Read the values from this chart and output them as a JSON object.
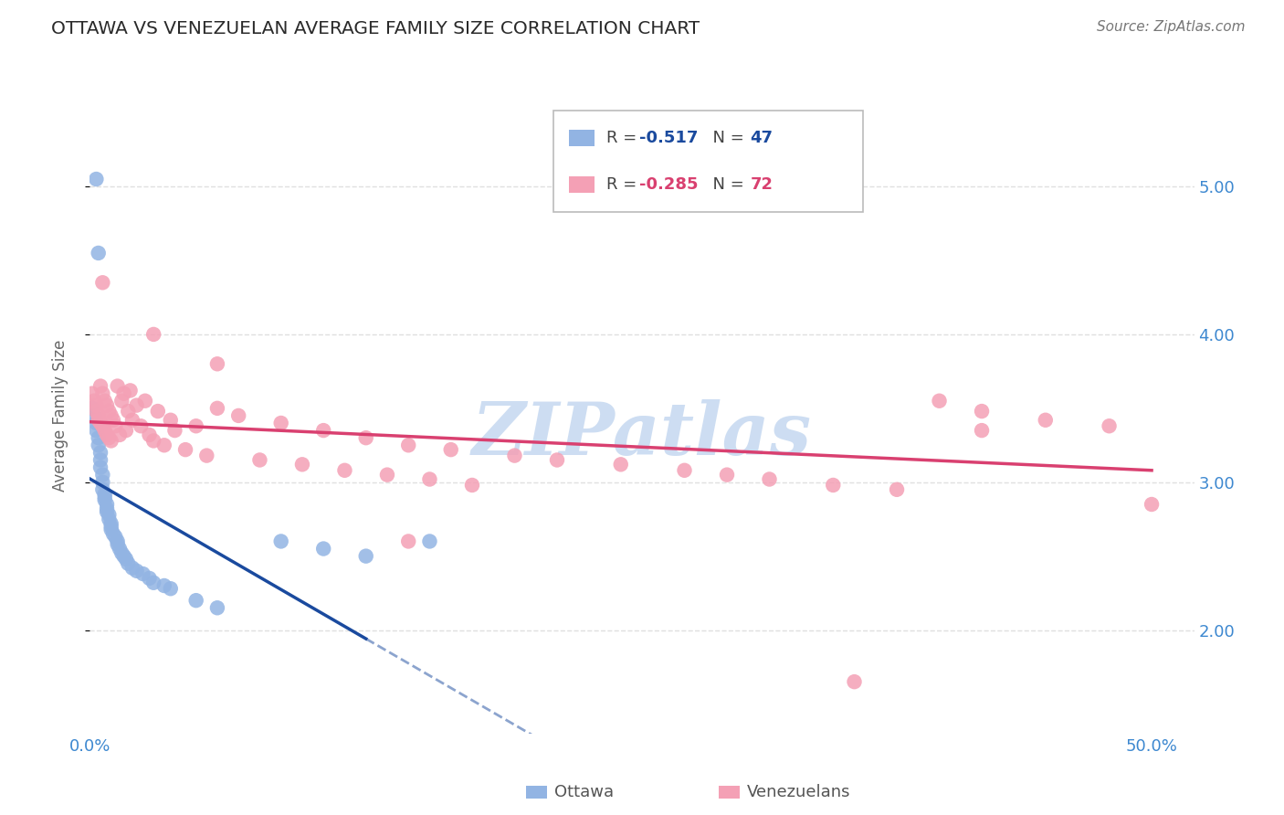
{
  "title": "OTTAWA VS VENEZUELAN AVERAGE FAMILY SIZE CORRELATION CHART",
  "source": "Source: ZipAtlas.com",
  "ylabel": "Average Family Size",
  "xlim": [
    0.0,
    0.52
  ],
  "ylim": [
    1.3,
    5.6
  ],
  "yticks": [
    2.0,
    3.0,
    4.0,
    5.0
  ],
  "xtick_positions": [
    0.0,
    0.1,
    0.2,
    0.3,
    0.4,
    0.5
  ],
  "xticklabels": [
    "0.0%",
    "",
    "",
    "",
    "",
    "50.0%"
  ],
  "yticklabels_right": [
    "2.00",
    "3.00",
    "4.00",
    "5.00"
  ],
  "ottawa_R": -0.517,
  "ottawa_N": 47,
  "venezuelan_R": -0.285,
  "venezuelan_N": 72,
  "ottawa_color": "#92b4e3",
  "venezuelan_color": "#f4a0b5",
  "ottawa_line_color": "#1a4a9e",
  "venezuelan_line_color": "#d94070",
  "watermark": "ZIPatlas",
  "watermark_color": "#c5d8f0",
  "background_color": "#ffffff",
  "grid_color": "#e0e0e0",
  "axis_label_color": "#3d88d0",
  "ottawa_x": [
    0.001,
    0.002,
    0.003,
    0.003,
    0.004,
    0.004,
    0.005,
    0.005,
    0.005,
    0.006,
    0.006,
    0.006,
    0.007,
    0.007,
    0.007,
    0.008,
    0.008,
    0.008,
    0.009,
    0.009,
    0.01,
    0.01,
    0.01,
    0.011,
    0.012,
    0.013,
    0.013,
    0.014,
    0.015,
    0.016,
    0.017,
    0.018,
    0.02,
    0.022,
    0.025,
    0.028,
    0.03,
    0.035,
    0.038,
    0.05,
    0.06,
    0.09,
    0.11,
    0.13,
    0.003,
    0.004,
    0.16
  ],
  "ottawa_y": [
    3.5,
    3.45,
    3.4,
    3.35,
    3.3,
    3.25,
    3.2,
    3.15,
    3.1,
    3.05,
    3.0,
    2.95,
    2.92,
    2.9,
    2.88,
    2.85,
    2.82,
    2.8,
    2.78,
    2.75,
    2.72,
    2.7,
    2.68,
    2.65,
    2.63,
    2.6,
    2.58,
    2.55,
    2.52,
    2.5,
    2.48,
    2.45,
    2.42,
    2.4,
    2.38,
    2.35,
    2.32,
    2.3,
    2.28,
    2.2,
    2.15,
    2.6,
    2.55,
    2.5,
    5.05,
    4.55,
    2.6
  ],
  "venezuelan_x": [
    0.001,
    0.002,
    0.003,
    0.003,
    0.004,
    0.004,
    0.005,
    0.005,
    0.006,
    0.006,
    0.007,
    0.007,
    0.008,
    0.008,
    0.009,
    0.009,
    0.01,
    0.01,
    0.011,
    0.012,
    0.013,
    0.014,
    0.015,
    0.016,
    0.017,
    0.018,
    0.019,
    0.02,
    0.022,
    0.024,
    0.026,
    0.028,
    0.03,
    0.032,
    0.035,
    0.038,
    0.04,
    0.045,
    0.05,
    0.055,
    0.06,
    0.07,
    0.08,
    0.09,
    0.1,
    0.11,
    0.12,
    0.13,
    0.14,
    0.15,
    0.16,
    0.17,
    0.18,
    0.2,
    0.22,
    0.25,
    0.28,
    0.3,
    0.32,
    0.35,
    0.38,
    0.4,
    0.42,
    0.45,
    0.48,
    0.5,
    0.006,
    0.03,
    0.06,
    0.15,
    0.42,
    0.36
  ],
  "venezuelan_y": [
    3.6,
    3.55,
    3.52,
    3.48,
    3.45,
    3.42,
    3.65,
    3.4,
    3.6,
    3.38,
    3.55,
    3.35,
    3.52,
    3.32,
    3.48,
    3.3,
    3.45,
    3.28,
    3.42,
    3.38,
    3.65,
    3.32,
    3.55,
    3.6,
    3.35,
    3.48,
    3.62,
    3.42,
    3.52,
    3.38,
    3.55,
    3.32,
    3.28,
    3.48,
    3.25,
    3.42,
    3.35,
    3.22,
    3.38,
    3.18,
    3.5,
    3.45,
    3.15,
    3.4,
    3.12,
    3.35,
    3.08,
    3.3,
    3.05,
    3.25,
    3.02,
    3.22,
    2.98,
    3.18,
    3.15,
    3.12,
    3.08,
    3.05,
    3.02,
    2.98,
    2.95,
    3.55,
    3.48,
    3.42,
    3.38,
    2.85,
    4.35,
    4.0,
    3.8,
    2.6,
    3.35,
    1.65
  ]
}
